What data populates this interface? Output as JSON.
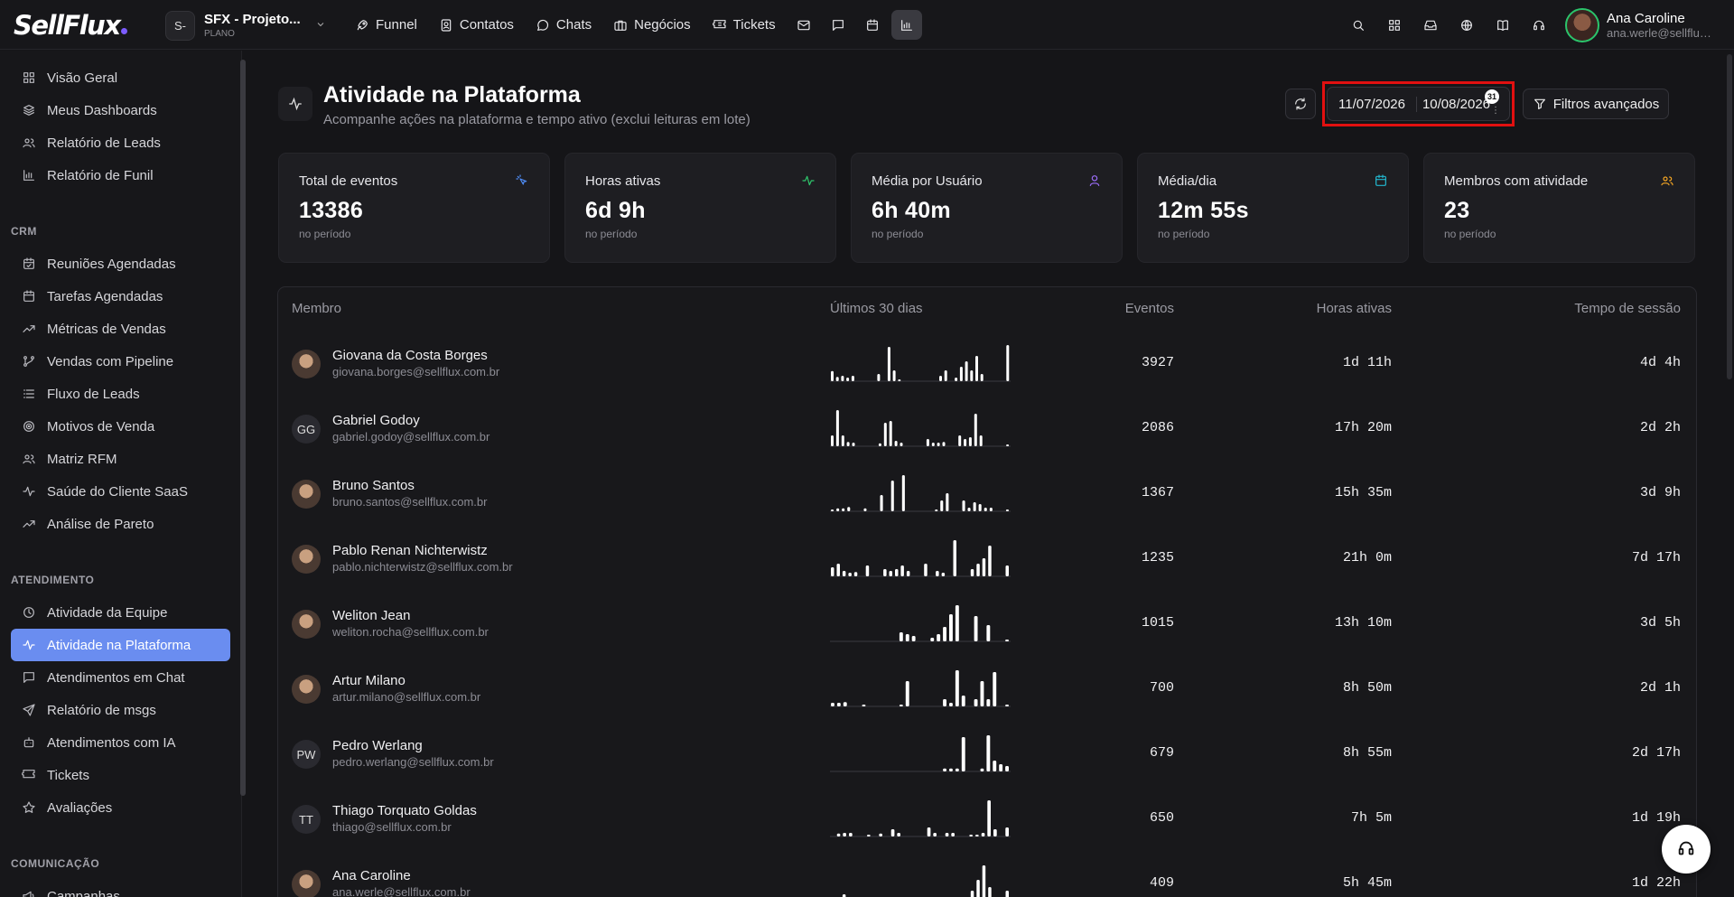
{
  "app": {
    "logo": "SellFlux"
  },
  "project": {
    "badge": "S-",
    "name": "SFX - Projeto...",
    "plan": "PLANO"
  },
  "nav": [
    {
      "label": "Funnel",
      "icon": "rocket-icon"
    },
    {
      "label": "Contatos",
      "icon": "contacts-icon"
    },
    {
      "label": "Chats",
      "icon": "chat-icon"
    },
    {
      "label": "Negócios",
      "icon": "briefcase-icon"
    },
    {
      "label": "Tickets",
      "icon": "ticket-icon"
    }
  ],
  "nav_icons": [
    "mail-icon",
    "message-square-icon",
    "calendar-icon",
    "bar-chart-icon"
  ],
  "header_right_icons": [
    "search-icon",
    "grid-icon",
    "inbox-icon",
    "globe-icon",
    "book-icon",
    "headset-icon"
  ],
  "user": {
    "name": "Ana Caroline",
    "email": "ana.werle@sellflux..."
  },
  "sidebar": {
    "top": [
      {
        "label": "Visão Geral",
        "icon": "grid-icon"
      },
      {
        "label": "Meus Dashboards",
        "icon": "layers-icon"
      },
      {
        "label": "Relatório de Leads",
        "icon": "users-icon"
      },
      {
        "label": "Relatório de Funil",
        "icon": "bar-chart-icon"
      }
    ],
    "crm_label": "CRM",
    "crm": [
      {
        "label": "Reuniões Agendadas",
        "icon": "calendar-check-icon"
      },
      {
        "label": "Tarefas Agendadas",
        "icon": "calendar-icon"
      },
      {
        "label": "Métricas de Vendas",
        "icon": "trending-up-icon"
      },
      {
        "label": "Vendas com Pipeline",
        "icon": "git-branch-icon"
      },
      {
        "label": "Fluxo de Leads",
        "icon": "list-icon"
      },
      {
        "label": "Motivos de Venda",
        "icon": "target-icon"
      },
      {
        "label": "Matriz RFM",
        "icon": "users-icon"
      },
      {
        "label": "Saúde do Cliente SaaS",
        "icon": "activity-icon"
      },
      {
        "label": "Análise de Pareto",
        "icon": "trending-up-icon"
      }
    ],
    "atendimento_label": "ATENDIMENTO",
    "atendimento": [
      {
        "label": "Atividade da Equipe",
        "icon": "clock-icon",
        "active": false
      },
      {
        "label": "Atividade na Plataforma",
        "icon": "activity-icon",
        "active": true
      },
      {
        "label": "Atendimentos em Chat",
        "icon": "chat-icon",
        "active": false
      },
      {
        "label": "Relatório de msgs",
        "icon": "send-icon",
        "active": false
      },
      {
        "label": "Atendimentos com IA",
        "icon": "bot-icon",
        "active": false
      },
      {
        "label": "Tickets",
        "icon": "ticket-icon",
        "active": false
      },
      {
        "label": "Avaliações",
        "icon": "star-icon",
        "active": false
      }
    ],
    "comunicacao_label": "COMUNICAÇÃO",
    "comunicacao": [
      {
        "label": "Campanhas",
        "icon": "megaphone-icon"
      }
    ]
  },
  "page": {
    "title": "Atividade na Plataforma",
    "subtitle": "Acompanhe ações na plataforma e tempo ativo (exclui leituras em lote)",
    "date_start": "11/07/2026",
    "date_end": "10/08/2026",
    "calendar_badge": "31",
    "filters_label": "Filtros avançados"
  },
  "cards": [
    {
      "label": "Total de eventos",
      "value": "13386",
      "sub": "no período",
      "icon": "pointer-icon",
      "color": "#4f8df7"
    },
    {
      "label": "Horas ativas",
      "value": "6d 9h",
      "sub": "no período",
      "icon": "activity-icon",
      "color": "#2fc46b"
    },
    {
      "label": "Média por Usuário",
      "value": "6h 40m",
      "sub": "no período",
      "icon": "user-icon",
      "color": "#9b6cf7"
    },
    {
      "label": "Média/dia",
      "value": "12m 55s",
      "sub": "no período",
      "icon": "calendar-icon",
      "color": "#22b8cf"
    },
    {
      "label": "Membros com atividade",
      "value": "23",
      "sub": "no período",
      "icon": "users-icon",
      "color": "#f5a623"
    }
  ],
  "table": {
    "headers": {
      "member": "Membro",
      "last30": "Últimos 30 dias",
      "events": "Eventos",
      "hours": "Horas ativas",
      "session": "Tempo de sessão"
    },
    "rows": [
      {
        "name": "Giovana da Costa Borges",
        "email": "giovana.borges@sellflux.com.br",
        "initials": "",
        "photo": true,
        "events": "3927",
        "hours": "1d 11h",
        "session": "4d 4h",
        "spark": [
          0.28,
          0.12,
          0.15,
          0.1,
          0.15,
          0,
          0,
          0,
          0,
          0.2,
          0,
          0.95,
          0.3,
          0.05,
          0,
          0,
          0,
          0,
          0,
          0,
          0,
          0.15,
          0.3,
          0,
          0.1,
          0.4,
          0.55,
          0.3,
          0.7,
          0.2,
          0,
          0,
          0,
          0,
          1
        ]
      },
      {
        "name": "Gabriel Godoy",
        "email": "gabriel.godoy@sellflux.com.br",
        "initials": "GG",
        "photo": false,
        "events": "2086",
        "hours": "17h 20m",
        "session": "2d 2h",
        "spark": [
          0.3,
          1,
          0.3,
          0.12,
          0.1,
          0,
          0,
          0,
          0,
          0.08,
          0.65,
          0.7,
          0.15,
          0.1,
          0,
          0,
          0,
          0,
          0.2,
          0.1,
          0.1,
          0.12,
          0,
          0,
          0.3,
          0.2,
          0.25,
          0.9,
          0.3,
          0,
          0,
          0,
          0,
          0.05
        ]
      },
      {
        "name": "Bruno Santos",
        "email": "bruno.santos@sellflux.com.br",
        "initials": "",
        "photo": true,
        "events": "1367",
        "hours": "15h 35m",
        "session": "3d 9h",
        "spark": [
          0.05,
          0.08,
          0.08,
          0.12,
          0,
          0,
          0.08,
          0,
          0,
          0.45,
          0,
          0.85,
          0,
          1,
          0,
          0,
          0,
          0,
          0,
          0.05,
          0.3,
          0.5,
          0,
          0,
          0.3,
          0.1,
          0.25,
          0.2,
          0.1,
          0.1,
          0,
          0,
          0.05
        ]
      },
      {
        "name": "Pablo Renan Nichterwistz",
        "email": "pablo.nichterwistz@sellflux.com.br",
        "initials": "",
        "photo": true,
        "events": "1235",
        "hours": "21h 0m",
        "session": "7d 17h",
        "spark": [
          0.25,
          0.35,
          0.15,
          0.1,
          0.12,
          0,
          0.3,
          0,
          0,
          0.2,
          0.15,
          0.2,
          0.3,
          0.15,
          0,
          0,
          0.35,
          0,
          0.15,
          0.1,
          0,
          1,
          0,
          0,
          0.2,
          0.35,
          0.5,
          0.85,
          0,
          0,
          0.3
        ]
      },
      {
        "name": "Weliton Jean",
        "email": "weliton.rocha@sellflux.com.br",
        "initials": "",
        "photo": true,
        "events": "1015",
        "hours": "13h 10m",
        "session": "3d 5h",
        "spark": [
          0,
          0,
          0,
          0,
          0,
          0,
          0,
          0,
          0,
          0,
          0,
          0.25,
          0.2,
          0.15,
          0,
          0,
          0.1,
          0.2,
          0.4,
          0.75,
          1,
          0,
          0,
          0.7,
          0,
          0.45,
          0,
          0,
          0.05
        ]
      },
      {
        "name": "Artur Milano",
        "email": "artur.milano@sellflux.com.br",
        "initials": "",
        "photo": true,
        "events": "700",
        "hours": "8h 50m",
        "session": "2d 1h",
        "spark": [
          0.1,
          0.1,
          0.12,
          0,
          0,
          0.05,
          0,
          0,
          0,
          0,
          0,
          0.05,
          0.7,
          0,
          0,
          0,
          0,
          0,
          0.2,
          0.1,
          1,
          0.3,
          0,
          0.2,
          0.7,
          0.2,
          0.95,
          0,
          0.05
        ]
      },
      {
        "name": "Pedro Werlang",
        "email": "pedro.werlang@sellflux.com.br",
        "initials": "PW",
        "photo": false,
        "events": "679",
        "hours": "8h 55m",
        "session": "2d 17h",
        "spark": [
          0,
          0,
          0,
          0,
          0,
          0,
          0,
          0,
          0,
          0,
          0,
          0,
          0,
          0,
          0,
          0,
          0,
          0,
          0.08,
          0.08,
          0.08,
          0.95,
          0,
          0,
          0.08,
          1,
          0.3,
          0.2,
          0.15
        ]
      },
      {
        "name": "Thiago Torquato Goldas",
        "email": "thiago@sellflux.com.br",
        "initials": "TT",
        "photo": false,
        "events": "650",
        "hours": "7h 5m",
        "session": "1d 19h",
        "spark": [
          0,
          0.08,
          0.1,
          0.1,
          0,
          0,
          0.05,
          0,
          0.08,
          0,
          0.2,
          0.1,
          0,
          0,
          0,
          0,
          0.25,
          0.1,
          0,
          0.1,
          0.1,
          0,
          0,
          0.05,
          0.05,
          0.1,
          1,
          0.2,
          0,
          0.25
        ]
      },
      {
        "name": "Ana Caroline",
        "email": "ana.werle@sellflux.com.br",
        "initials": "",
        "photo": true,
        "events": "409",
        "hours": "5h 45m",
        "session": "1d 22h",
        "spark": [
          0,
          0,
          0.2,
          0,
          0,
          0,
          0,
          0,
          0,
          0,
          0,
          0,
          0,
          0,
          0,
          0,
          0,
          0,
          0,
          0,
          0,
          0,
          0,
          0,
          0.3,
          0.6,
          1,
          0.4,
          0,
          0,
          0.3
        ]
      }
    ]
  }
}
